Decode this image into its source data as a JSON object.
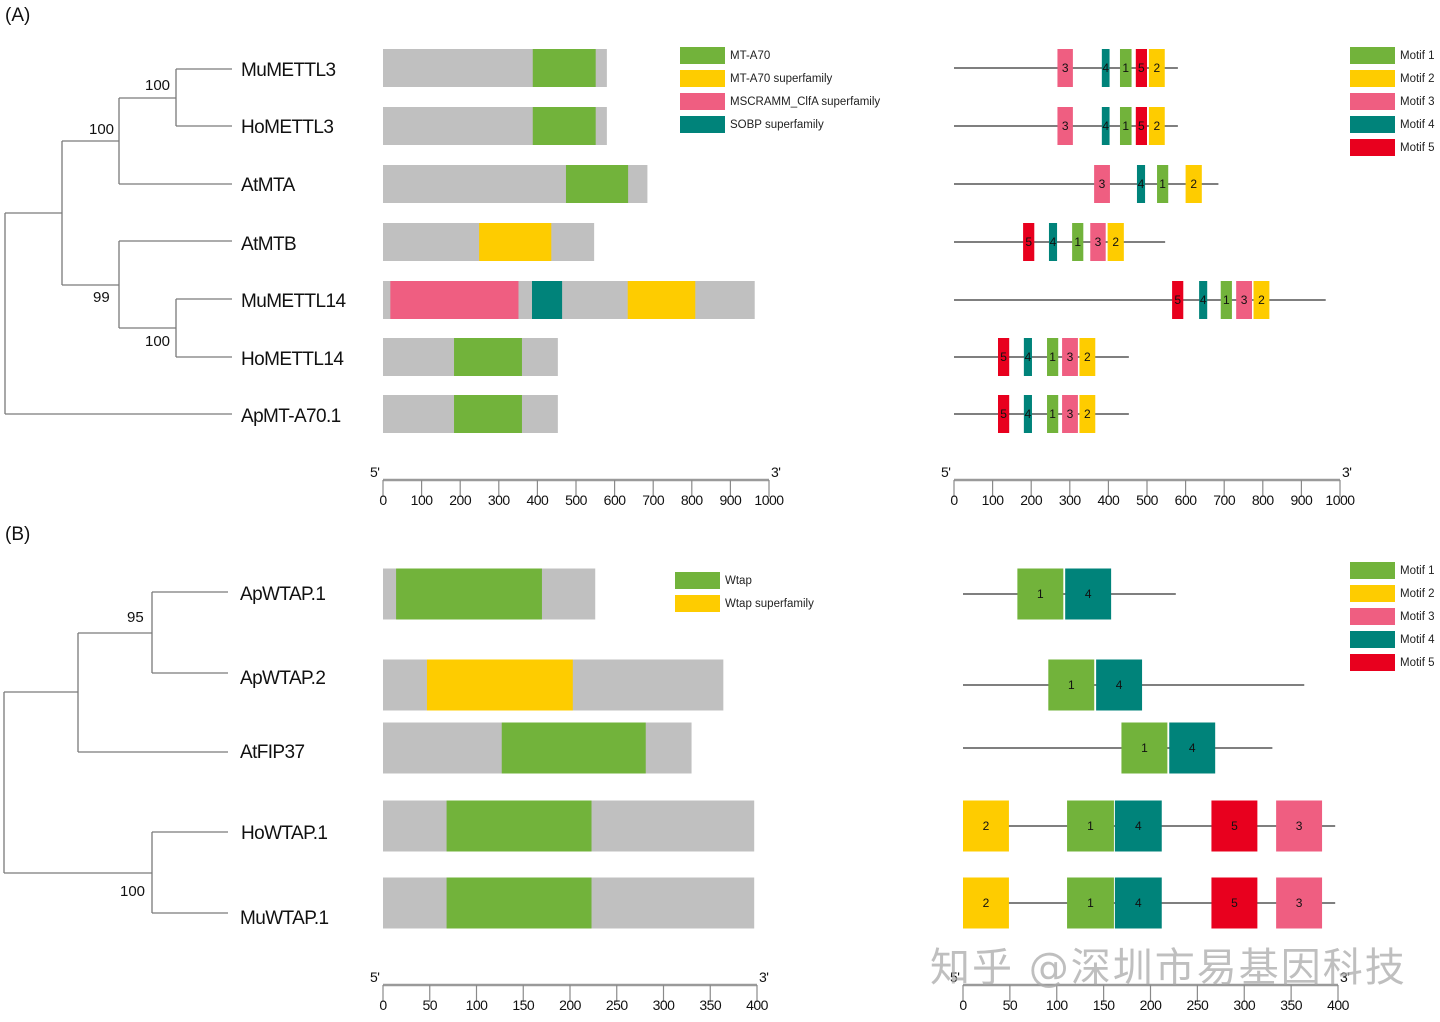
{
  "colors": {
    "green": "#72b33b",
    "yellow": "#fecc00",
    "pink": "#ef5e81",
    "teal": "#00837a",
    "red": "#e8001e",
    "gray_bar": "#c0c0c0",
    "tree": "#7a7a7a"
  },
  "panelA": {
    "label": "(A)",
    "taxa": [
      "MuMETTL3",
      "HoMETTL3",
      "AtMTA",
      "AtMTB",
      "MuMETTL14",
      "HoMETTL14",
      "ApMT-A70.1"
    ],
    "bootstrap": [
      {
        "node": "MuMETTL3+HoMETTL3",
        "value": "100"
      },
      {
        "node": "METTL3+AtMTA",
        "value": "100"
      },
      {
        "node": "AtMTB+METTL14",
        "value": "99"
      },
      {
        "node": "MuMETTL14+HoMETTL14",
        "value": "100"
      }
    ],
    "domain_legend": [
      {
        "label": "MT-A70",
        "color": "green"
      },
      {
        "label": "MT-A70 superfamily",
        "color": "yellow"
      },
      {
        "label": "MSCRAMM_ClfA superfamily",
        "color": "pink"
      },
      {
        "label": "SOBP superfamily",
        "color": "teal"
      }
    ],
    "motif_legend": [
      {
        "label": "Motif 1",
        "color": "green"
      },
      {
        "label": "Motif 2",
        "color": "yellow"
      },
      {
        "label": "Motif 3",
        "color": "pink"
      },
      {
        "label": "Motif 4",
        "color": "teal"
      },
      {
        "label": "Motif 5",
        "color": "red"
      }
    ],
    "domain_axis": {
      "start_label": "5'",
      "end_label": "3'",
      "ticks": [
        "0",
        "100",
        "200",
        "300",
        "400",
        "500",
        "600",
        "700",
        "800",
        "900",
        "1000"
      ],
      "max": 1000
    },
    "motif_axis": {
      "start_label": "5'",
      "end_label": "3'",
      "ticks": [
        "0",
        "100",
        "200",
        "300",
        "400",
        "500",
        "600",
        "700",
        "800",
        "900",
        "1000"
      ],
      "max": 1000
    },
    "proteins": [
      {
        "name": "MuMETTL3",
        "length": 580,
        "domains": [
          {
            "type": "green",
            "start": 388,
            "end": 551
          }
        ],
        "motifs": [
          {
            "id": "3",
            "start": 268,
            "end": 308
          },
          {
            "id": "4",
            "start": 383,
            "end": 403
          },
          {
            "id": "1",
            "start": 430,
            "end": 460
          },
          {
            "id": "5",
            "start": 471,
            "end": 500
          },
          {
            "id": "2",
            "start": 505,
            "end": 546
          }
        ]
      },
      {
        "name": "HoMETTL3",
        "length": 580,
        "domains": [
          {
            "type": "green",
            "start": 388,
            "end": 551
          }
        ],
        "motifs": [
          {
            "id": "3",
            "start": 268,
            "end": 308
          },
          {
            "id": "4",
            "start": 383,
            "end": 403
          },
          {
            "id": "1",
            "start": 430,
            "end": 460
          },
          {
            "id": "5",
            "start": 471,
            "end": 500
          },
          {
            "id": "2",
            "start": 505,
            "end": 546
          }
        ]
      },
      {
        "name": "AtMTA",
        "length": 685,
        "domains": [
          {
            "type": "green",
            "start": 474,
            "end": 635
          }
        ],
        "motifs": [
          {
            "id": "3",
            "start": 363,
            "end": 404
          },
          {
            "id": "4",
            "start": 474,
            "end": 495
          },
          {
            "id": "1",
            "start": 526,
            "end": 555
          },
          {
            "id": "2",
            "start": 600,
            "end": 642
          }
        ]
      },
      {
        "name": "AtMTB",
        "length": 547,
        "domains": [
          {
            "type": "yellow",
            "start": 249,
            "end": 436
          }
        ],
        "motifs": [
          {
            "id": "5",
            "start": 179,
            "end": 208
          },
          {
            "id": "4",
            "start": 246,
            "end": 267
          },
          {
            "id": "1",
            "start": 306,
            "end": 335
          },
          {
            "id": "3",
            "start": 353,
            "end": 393
          },
          {
            "id": "2",
            "start": 398,
            "end": 440
          }
        ]
      },
      {
        "name": "MuMETTL14",
        "length": 963,
        "domains": [
          {
            "type": "pink",
            "start": 19,
            "end": 351
          },
          {
            "type": "teal",
            "start": 386,
            "end": 464
          },
          {
            "type": "yellow",
            "start": 634,
            "end": 809
          }
        ],
        "motifs": [
          {
            "id": "5",
            "start": 565,
            "end": 594
          },
          {
            "id": "4",
            "start": 635,
            "end": 656
          },
          {
            "id": "1",
            "start": 691,
            "end": 720
          },
          {
            "id": "3",
            "start": 731,
            "end": 772
          },
          {
            "id": "2",
            "start": 776,
            "end": 817
          }
        ]
      },
      {
        "name": "HoMETTL14",
        "length": 453,
        "domains": [
          {
            "type": "green",
            "start": 184,
            "end": 360
          }
        ],
        "motifs": [
          {
            "id": "5",
            "start": 114,
            "end": 143
          },
          {
            "id": "4",
            "start": 181,
            "end": 202
          },
          {
            "id": "1",
            "start": 241,
            "end": 270
          },
          {
            "id": "3",
            "start": 280,
            "end": 321
          },
          {
            "id": "2",
            "start": 325,
            "end": 366
          }
        ]
      },
      {
        "name": "ApMT-A70.1",
        "length": 453,
        "domains": [
          {
            "type": "green",
            "start": 184,
            "end": 360
          }
        ],
        "motifs": [
          {
            "id": "5",
            "start": 114,
            "end": 143
          },
          {
            "id": "4",
            "start": 181,
            "end": 202
          },
          {
            "id": "1",
            "start": 241,
            "end": 270
          },
          {
            "id": "3",
            "start": 280,
            "end": 321
          },
          {
            "id": "2",
            "start": 325,
            "end": 366
          }
        ]
      }
    ]
  },
  "panelB": {
    "label": "(B)",
    "taxa": [
      "ApWTAP.1",
      "ApWTAP.2",
      "AtFIP37",
      "HoWTAP.1",
      "MuWTAP.1"
    ],
    "bootstrap": [
      {
        "node": "ApWTAP.1+ApWTAP.2",
        "value": "95"
      },
      {
        "node": "HoWTAP.1+MuWTAP.1",
        "value": "100"
      }
    ],
    "domain_legend": [
      {
        "label": "Wtap",
        "color": "green"
      },
      {
        "label": "Wtap superfamily",
        "color": "yellow"
      }
    ],
    "motif_legend": [
      {
        "label": "Motif 1",
        "color": "green"
      },
      {
        "label": "Motif 2",
        "color": "yellow"
      },
      {
        "label": "Motif 3",
        "color": "pink"
      },
      {
        "label": "Motif 4",
        "color": "teal"
      },
      {
        "label": "Motif 5",
        "color": "red"
      }
    ],
    "domain_axis": {
      "start_label": "5'",
      "end_label": "3'",
      "ticks": [
        "0",
        "50",
        "100",
        "150",
        "200",
        "250",
        "300",
        "350",
        "400"
      ],
      "max": 400
    },
    "motif_axis": {
      "start_label": "5'",
      "end_label": "3'",
      "ticks": [
        "0",
        "50",
        "100",
        "150",
        "200",
        "250",
        "300",
        "350",
        "400"
      ],
      "max": 400
    },
    "proteins": [
      {
        "name": "ApWTAP.1",
        "length": 227,
        "domains": [
          {
            "type": "green",
            "start": 14,
            "end": 170
          }
        ],
        "motifs": [
          {
            "id": "1",
            "start": 58,
            "end": 107
          },
          {
            "id": "4",
            "start": 109,
            "end": 158
          }
        ]
      },
      {
        "name": "ApWTAP.2",
        "length": 364,
        "domains": [
          {
            "type": "yellow",
            "start": 47,
            "end": 203
          }
        ],
        "motifs": [
          {
            "id": "1",
            "start": 91,
            "end": 140
          },
          {
            "id": "4",
            "start": 142,
            "end": 191
          }
        ]
      },
      {
        "name": "AtFIP37",
        "length": 330,
        "domains": [
          {
            "type": "green",
            "start": 127,
            "end": 281
          }
        ],
        "motifs": [
          {
            "id": "1",
            "start": 169,
            "end": 218
          },
          {
            "id": "4",
            "start": 220,
            "end": 269
          }
        ]
      },
      {
        "name": "HoWTAP.1",
        "length": 397,
        "domains": [
          {
            "type": "green",
            "start": 68,
            "end": 223
          }
        ],
        "motifs": [
          {
            "id": "2",
            "start": 0,
            "end": 49
          },
          {
            "id": "1",
            "start": 111,
            "end": 161
          },
          {
            "id": "4",
            "start": 162,
            "end": 212
          },
          {
            "id": "5",
            "start": 265,
            "end": 314
          },
          {
            "id": "3",
            "start": 334,
            "end": 383
          }
        ]
      },
      {
        "name": "MuWTAP.1",
        "length": 397,
        "domains": [
          {
            "type": "green",
            "start": 68,
            "end": 223
          }
        ],
        "motifs": [
          {
            "id": "2",
            "start": 0,
            "end": 49
          },
          {
            "id": "1",
            "start": 111,
            "end": 161
          },
          {
            "id": "4",
            "start": 162,
            "end": 212
          },
          {
            "id": "5",
            "start": 265,
            "end": 314
          },
          {
            "id": "3",
            "start": 334,
            "end": 383
          }
        ]
      }
    ]
  },
  "watermark": "知乎 @深圳市易基因科技"
}
